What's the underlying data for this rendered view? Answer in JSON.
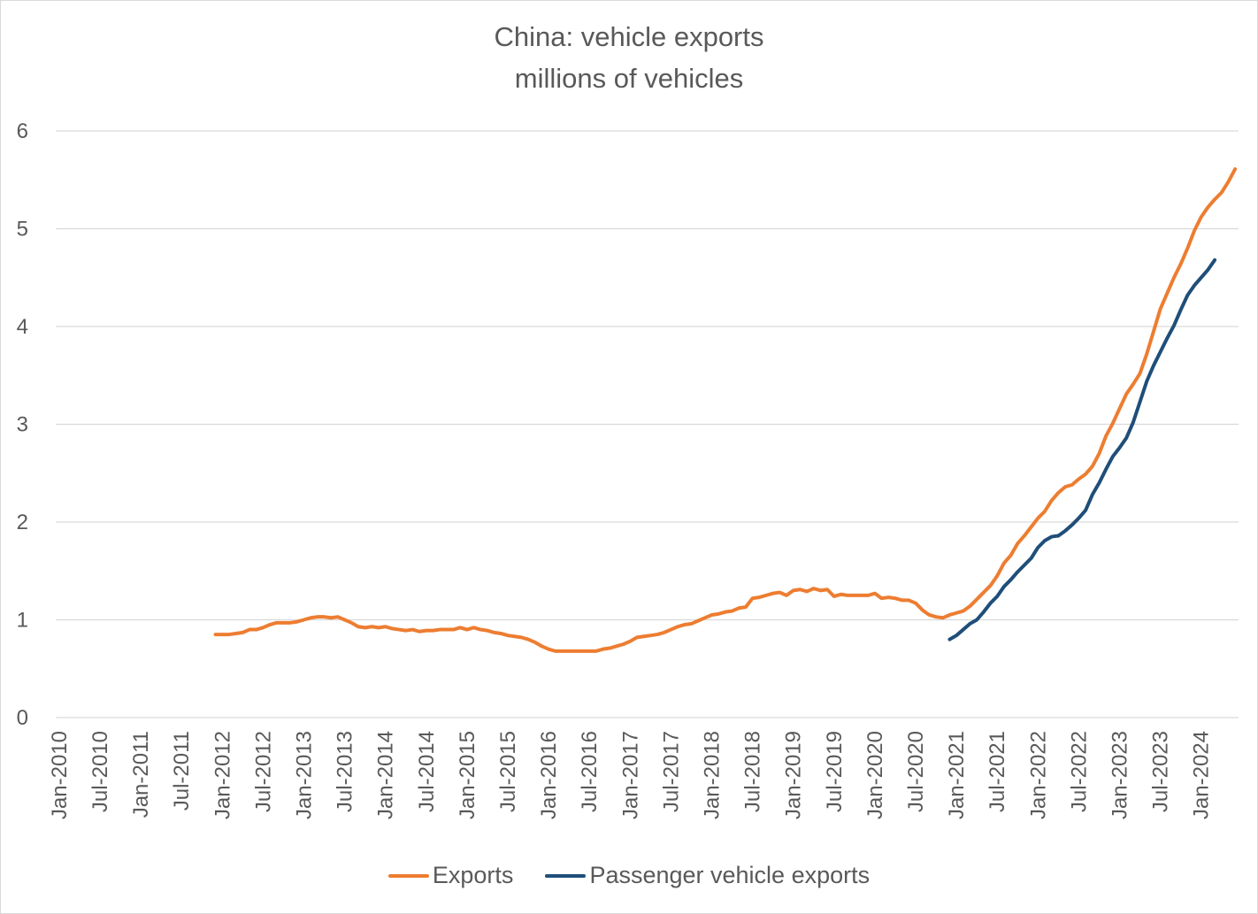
{
  "chart_data": {
    "type": "line",
    "title": "China: vehicle exports",
    "subtitle": "millions of vehicles",
    "xlabel": "",
    "ylabel": "",
    "ylim": [
      0,
      6
    ],
    "yticks": [
      "0",
      "1",
      "2",
      "3",
      "4",
      "5",
      "6"
    ],
    "x_start": "Jan-2010",
    "x_end": "Jun-2024",
    "x_tick_labels": [
      "Jan-2010",
      "Jul-2010",
      "Jan-2011",
      "Jul-2011",
      "Jan-2012",
      "Jul-2012",
      "Jan-2013",
      "Jul-2013",
      "Jan-2014",
      "Jul-2014",
      "Jan-2015",
      "Jul-2015",
      "Jan-2016",
      "Jul-2016",
      "Jan-2017",
      "Jul-2017",
      "Jan-2018",
      "Jul-2018",
      "Jan-2019",
      "Jul-2019",
      "Jan-2020",
      "Jul-2020",
      "Jan-2021",
      "Jul-2021",
      "Jan-2022",
      "Jul-2022",
      "Jan-2023",
      "Jul-2023",
      "Jan-2024"
    ],
    "grid": true,
    "legend_position": "bottom",
    "series": [
      {
        "name": "Exports",
        "color": "#ed7d31",
        "start": "Dec-2011",
        "values": [
          0.85,
          0.85,
          0.85,
          0.86,
          0.87,
          0.9,
          0.9,
          0.92,
          0.95,
          0.97,
          0.97,
          0.97,
          0.98,
          1.0,
          1.02,
          1.03,
          1.03,
          1.02,
          1.03,
          1.0,
          0.97,
          0.93,
          0.92,
          0.93,
          0.92,
          0.93,
          0.91,
          0.9,
          0.89,
          0.9,
          0.88,
          0.89,
          0.89,
          0.9,
          0.9,
          0.9,
          0.92,
          0.9,
          0.92,
          0.9,
          0.89,
          0.87,
          0.86,
          0.84,
          0.83,
          0.82,
          0.8,
          0.77,
          0.73,
          0.7,
          0.68,
          0.68,
          0.68,
          0.68,
          0.68,
          0.68,
          0.68,
          0.7,
          0.71,
          0.73,
          0.75,
          0.78,
          0.82,
          0.83,
          0.84,
          0.85,
          0.87,
          0.9,
          0.93,
          0.95,
          0.96,
          0.99,
          1.02,
          1.05,
          1.06,
          1.08,
          1.09,
          1.12,
          1.13,
          1.22,
          1.23,
          1.25,
          1.27,
          1.28,
          1.25,
          1.3,
          1.31,
          1.29,
          1.32,
          1.3,
          1.31,
          1.24,
          1.26,
          1.25,
          1.25,
          1.25,
          1.25,
          1.27,
          1.22,
          1.23,
          1.22,
          1.2,
          1.2,
          1.17,
          1.1,
          1.05,
          1.03,
          1.02,
          1.05,
          1.07,
          1.09,
          1.14,
          1.21,
          1.28,
          1.35,
          1.45,
          1.58,
          1.66,
          1.78,
          1.86,
          1.95,
          2.04,
          2.11,
          2.22,
          2.3,
          2.36,
          2.38,
          2.44,
          2.49,
          2.57,
          2.7,
          2.88,
          3.01,
          3.16,
          3.31,
          3.41,
          3.52,
          3.72,
          3.95,
          4.18,
          4.34,
          4.5,
          4.64,
          4.8,
          4.98,
          5.12,
          5.22,
          5.3,
          5.37,
          5.48,
          5.61
        ]
      },
      {
        "name": "Passenger vehicle exports",
        "color": "#1f4e79",
        "start": "Dec-2020",
        "values": [
          0.8,
          0.84,
          0.9,
          0.96,
          1.0,
          1.08,
          1.17,
          1.24,
          1.34,
          1.41,
          1.49,
          1.56,
          1.63,
          1.74,
          1.81,
          1.85,
          1.86,
          1.91,
          1.97,
          2.04,
          2.12,
          2.28,
          2.4,
          2.54,
          2.67,
          2.76,
          2.86,
          3.02,
          3.23,
          3.44,
          3.6,
          3.74,
          3.88,
          4.01,
          4.17,
          4.32,
          4.42,
          4.5,
          4.58,
          4.68
        ]
      }
    ]
  }
}
